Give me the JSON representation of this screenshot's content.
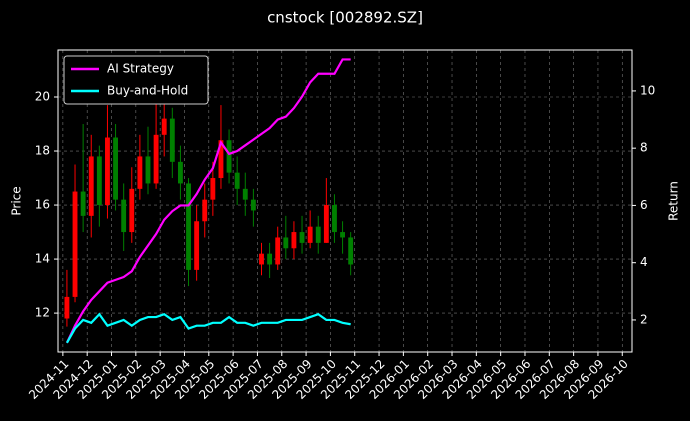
{
  "chart_data": {
    "type": "candlestick",
    "title": "cnstock [002892.SZ]",
    "ylabel": "Price",
    "y2label": "Return",
    "xticks": [
      "2024-11",
      "2024-12",
      "2025-01",
      "2025-02",
      "2025-03",
      "2025-04",
      "2025-05",
      "2025-06",
      "2025-07",
      "2025-08",
      "2025-09",
      "2025-10",
      "2025-11",
      "2025-12",
      "2026-01",
      "2026-02",
      "2026-03",
      "2026-04",
      "2026-05",
      "2026-06",
      "2026-07",
      "2026-08",
      "2026-09",
      "2026-10"
    ],
    "x": [
      "2024-11",
      "2024-11",
      "2024-11",
      "2024-12",
      "2024-12",
      "2024-12",
      "2025-01",
      "2025-01",
      "2025-01",
      "2025-02",
      "2025-02",
      "2025-02",
      "2025-03",
      "2025-03",
      "2025-03",
      "2025-04",
      "2025-04",
      "2025-04",
      "2025-05",
      "2025-05",
      "2025-05",
      "2025-06",
      "2025-06",
      "2025-06",
      "2025-07",
      "2025-07",
      "2025-07",
      "2025-08",
      "2025-08",
      "2025-08",
      "2025-09",
      "2025-09",
      "2025-09",
      "2025-10",
      "2025-10",
      "2025-10"
    ],
    "open": [
      11.8,
      12.6,
      16.5,
      15.6,
      17.8,
      16.0,
      18.5,
      16.2,
      15.0,
      16.6,
      17.8,
      16.8,
      18.6,
      19.2,
      17.6,
      16.8,
      13.6,
      15.4,
      16.2,
      17.0,
      18.4,
      17.2,
      16.6,
      16.2,
      13.8,
      14.2,
      13.8,
      14.8,
      14.4,
      15.0,
      14.6,
      15.2,
      14.6,
      16.0,
      15.0,
      14.8
    ],
    "high": [
      13.6,
      17.5,
      19.0,
      18.6,
      18.2,
      19.7,
      19.0,
      16.8,
      17.4,
      18.6,
      18.9,
      19.8,
      20.2,
      19.6,
      18.2,
      17.0,
      16.0,
      16.8,
      17.6,
      19.7,
      18.8,
      17.8,
      17.2,
      16.6,
      14.6,
      14.6,
      15.2,
      15.6,
      15.4,
      15.6,
      15.8,
      15.6,
      17.0,
      16.4,
      15.4,
      15.0
    ],
    "low": [
      11.5,
      12.4,
      15.0,
      14.8,
      15.2,
      15.5,
      15.8,
      14.3,
      14.6,
      16.2,
      16.4,
      16.6,
      17.8,
      17.0,
      16.2,
      13.0,
      13.2,
      14.8,
      15.6,
      16.6,
      16.8,
      16.0,
      15.6,
      15.2,
      13.4,
      13.3,
      13.6,
      14.0,
      14.0,
      14.2,
      14.4,
      14.2,
      14.6,
      14.6,
      14.2,
      13.4
    ],
    "close": [
      12.6,
      16.5,
      15.6,
      17.8,
      16.0,
      18.5,
      16.2,
      15.0,
      16.6,
      17.8,
      16.8,
      18.6,
      19.2,
      17.6,
      16.8,
      13.6,
      15.4,
      16.2,
      17.0,
      18.4,
      17.2,
      16.6,
      16.2,
      15.8,
      14.2,
      13.8,
      14.8,
      14.4,
      15.0,
      14.6,
      15.2,
      14.6,
      16.0,
      15.0,
      14.8,
      13.8
    ],
    "up_color": "#ff0000",
    "down_color": "#008000",
    "series": [
      {
        "name": "AI Strategy",
        "color": "#ff00ff",
        "axis": "y2",
        "values": [
          1.2,
          1.8,
          2.3,
          2.7,
          3.0,
          3.3,
          3.4,
          3.5,
          3.7,
          4.2,
          4.6,
          5.0,
          5.5,
          5.8,
          6.0,
          6.0,
          6.4,
          6.9,
          7.3,
          8.2,
          7.8,
          7.9,
          8.1,
          8.3,
          8.5,
          8.7,
          9.0,
          9.1,
          9.4,
          9.8,
          10.3,
          10.6,
          10.6,
          10.6,
          11.1,
          11.1
        ]
      },
      {
        "name": "Buy-and-Hold",
        "color": "#00ffff",
        "axis": "y2",
        "values": [
          1.2,
          1.7,
          2.0,
          1.9,
          2.2,
          1.8,
          1.9,
          2.0,
          1.8,
          2.0,
          2.1,
          2.1,
          2.2,
          2.0,
          2.1,
          1.7,
          1.8,
          1.8,
          1.9,
          1.9,
          2.1,
          1.9,
          1.9,
          1.8,
          1.9,
          1.9,
          1.9,
          2.0,
          2.0,
          2.0,
          2.1,
          2.2,
          2.0,
          2.0,
          1.9,
          1.85
        ]
      }
    ],
    "ylim": [
      10.56,
      21.74
    ],
    "yticks": [
      12,
      14,
      16,
      18,
      20
    ],
    "y2lim": [
      0.88,
      11.43
    ],
    "y2ticks": [
      2,
      4,
      6,
      8,
      10
    ],
    "grid": true,
    "legend": "upper left"
  }
}
